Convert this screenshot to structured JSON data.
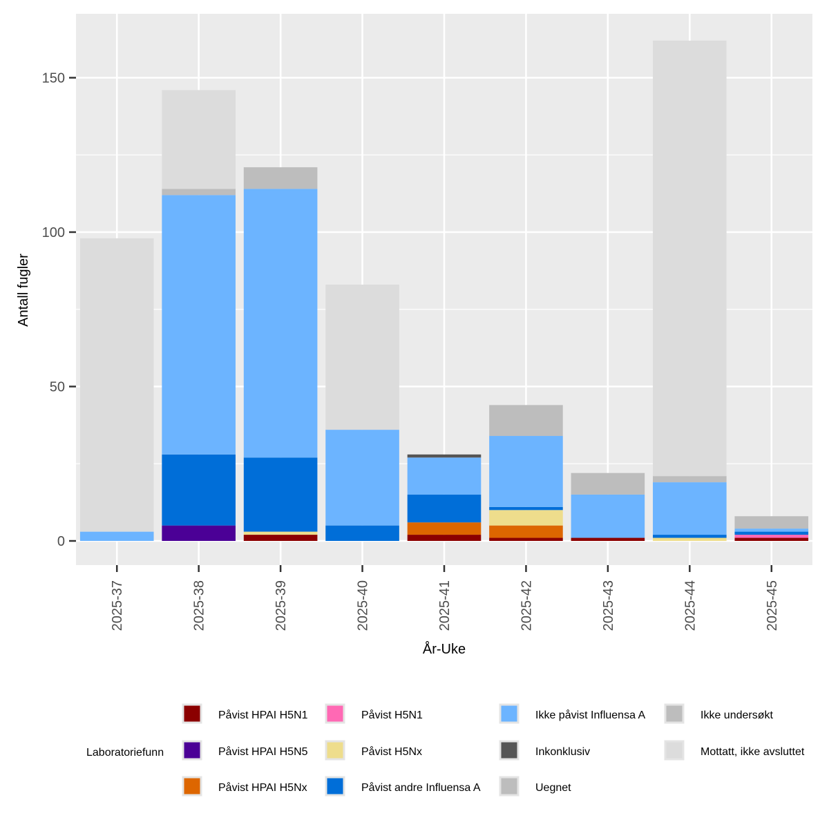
{
  "chart_data": {
    "type": "bar",
    "stacked": true,
    "title": "",
    "xlabel": "År-Uke",
    "ylabel": "Antall fugler",
    "ylim": [
      -7.5,
      170
    ],
    "yticks": [
      0,
      50,
      100,
      150
    ],
    "grid": true,
    "legend_title": "Laboratoriefunn",
    "legend_position": "bottom",
    "categories": [
      "2025-37",
      "2025-38",
      "2025-39",
      "2025-40",
      "2025-41",
      "2025-42",
      "2025-43",
      "2025-44",
      "2025-45"
    ],
    "series": [
      {
        "name": "Påvist HPAI H5N1",
        "color": "#8b0000",
        "values": [
          0,
          0,
          2,
          0,
          2,
          1,
          1,
          0,
          1
        ]
      },
      {
        "name": "Påvist HPAI H5N5",
        "color": "#4b0096",
        "values": [
          0,
          5,
          0,
          0,
          0,
          0,
          0,
          0,
          0
        ]
      },
      {
        "name": "Påvist HPAI H5Nx",
        "color": "#dd6600",
        "values": [
          0,
          0,
          0,
          0,
          4,
          4,
          0,
          0,
          0
        ]
      },
      {
        "name": "Påvist H5N1",
        "color": "#ff69b4",
        "values": [
          0,
          0,
          0,
          0,
          0,
          0,
          0,
          0,
          1
        ]
      },
      {
        "name": "Påvist H5Nx",
        "color": "#eedd8c",
        "values": [
          0,
          0,
          1,
          0,
          0,
          5,
          0,
          1,
          0
        ]
      },
      {
        "name": "Påvist andre Influensa A",
        "color": "#006ed8",
        "values": [
          0,
          23,
          24,
          5,
          9,
          1,
          0,
          1,
          1
        ]
      },
      {
        "name": "Ikke påvist Influensa A",
        "color": "#6cb4ff",
        "values": [
          3,
          84,
          87,
          31,
          12,
          23,
          14,
          17,
          1
        ]
      },
      {
        "name": "Inkonklusiv",
        "color": "#555555",
        "values": [
          0,
          0,
          0,
          0,
          1,
          0,
          0,
          0,
          0
        ]
      },
      {
        "name": "Uegnet",
        "color": "#bdbdbd",
        "values": [
          0,
          0,
          0,
          0,
          0,
          0,
          0,
          0,
          0
        ]
      },
      {
        "name": "Ikke undersøkt",
        "color": "#bdbdbd",
        "values": [
          0,
          2,
          7,
          0,
          0,
          10,
          7,
          2,
          4
        ]
      },
      {
        "name": "Mottatt, ikke avsluttet",
        "color": "#dcdcdc",
        "values": [
          95,
          32,
          0,
          47,
          0,
          0,
          0,
          141,
          0
        ]
      }
    ]
  }
}
